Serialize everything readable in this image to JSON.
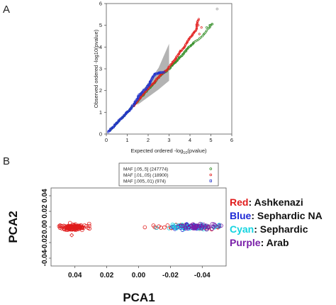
{
  "panel_a_label": "A",
  "panel_b_label": "B",
  "chart_data": [
    {
      "type": "scatter",
      "panel": "A",
      "xlabel_prefix": "Expected ordered -log",
      "xlabel_sub": "10",
      "xlabel_suffix": "(pvalue)",
      "ylabel": "Observed ordered -log10(pvalue)",
      "xlim": [
        0,
        6
      ],
      "ylim": [
        0,
        6
      ],
      "xticks": [
        "0",
        "1",
        "2",
        "3",
        "4",
        "5",
        "6"
      ],
      "yticks": [
        "0",
        "1",
        "2",
        "3",
        "4",
        "5",
        "6"
      ],
      "confidence_band": {
        "x": [
          1.5,
          2.0,
          2.5,
          2.75,
          3.0
        ],
        "upper": [
          1.7,
          2.35,
          3.05,
          3.6,
          4.15
        ],
        "lower": [
          1.35,
          1.7,
          2.05,
          2.25,
          2.45
        ]
      },
      "legend_position": "top",
      "series": [
        {
          "name": "MAF [.05,.5] (247774)",
          "color": "#2e8b22",
          "marker": "circle",
          "points": [
            [
              0.2,
              0.2
            ],
            [
              0.6,
              0.6
            ],
            [
              1.0,
              1.0
            ],
            [
              1.4,
              1.4
            ],
            [
              1.8,
              1.85
            ],
            [
              2.2,
              2.25
            ],
            [
              2.6,
              2.7
            ],
            [
              3.0,
              3.0
            ],
            [
              3.3,
              3.3
            ],
            [
              3.6,
              3.6
            ],
            [
              3.9,
              3.95
            ],
            [
              4.2,
              4.2
            ],
            [
              4.4,
              4.35
            ],
            [
              4.6,
              4.5
            ],
            [
              4.8,
              4.75
            ],
            [
              5.0,
              5.0
            ],
            [
              5.1,
              5.1
            ]
          ]
        },
        {
          "name": "MAF [.01,.05) (18900)",
          "color": "#e32222",
          "marker": "circle",
          "points": [
            [
              1.3,
              1.3
            ],
            [
              1.6,
              1.65
            ],
            [
              1.9,
              2.0
            ],
            [
              2.1,
              2.2
            ],
            [
              2.3,
              2.4
            ],
            [
              2.5,
              2.6
            ],
            [
              2.7,
              2.8
            ],
            [
              2.9,
              2.95
            ],
            [
              3.1,
              3.2
            ],
            [
              3.3,
              3.45
            ],
            [
              3.5,
              3.75
            ],
            [
              3.7,
              3.95
            ],
            [
              3.9,
              4.3
            ],
            [
              4.1,
              4.55
            ],
            [
              4.3,
              4.8
            ],
            [
              4.35,
              5.15
            ],
            [
              4.45,
              5.3
            ]
          ]
        },
        {
          "name": "MAF [.005,.01) (974)",
          "color": "#2233cc",
          "marker": "square",
          "points": [
            [
              0.1,
              0.1
            ],
            [
              0.4,
              0.4
            ],
            [
              0.8,
              0.8
            ],
            [
              1.1,
              1.1
            ],
            [
              1.3,
              1.35
            ],
            [
              1.45,
              1.55
            ],
            [
              1.55,
              1.75
            ],
            [
              1.65,
              1.85
            ],
            [
              1.8,
              2.0
            ],
            [
              1.95,
              2.15
            ],
            [
              2.05,
              2.3
            ],
            [
              2.15,
              2.5
            ],
            [
              2.3,
              2.75
            ],
            [
              2.5,
              2.8
            ],
            [
              2.7,
              2.85
            ],
            [
              2.8,
              2.85
            ]
          ]
        }
      ],
      "extra_points": [
        [
          5.3,
          5.75
        ]
      ]
    },
    {
      "type": "scatter",
      "panel": "B",
      "xlabel": "PCA1",
      "ylabel": "PCA2",
      "xlim": [
        0.055,
        -0.055
      ],
      "ylim": [
        0.05,
        -0.05
      ],
      "xticks": [
        "0.04",
        "0.02",
        "0.00",
        "-0.02",
        "-0.04"
      ],
      "yticks": [
        "-0.04",
        "-0.02",
        "0.00",
        "0.02",
        "0.04"
      ],
      "legend": [
        {
          "key": "Red",
          "name": "Ashkenazi",
          "color": "#e01b1b"
        },
        {
          "key": "Blue",
          "name": "Sephardic NA",
          "color": "#1f2ad6"
        },
        {
          "key": "Cyan",
          "name": "Sephardic",
          "color": "#14d4e0"
        },
        {
          "key": "Purple",
          "name": "Arab",
          "color": "#7a1fa8"
        }
      ]
    }
  ]
}
